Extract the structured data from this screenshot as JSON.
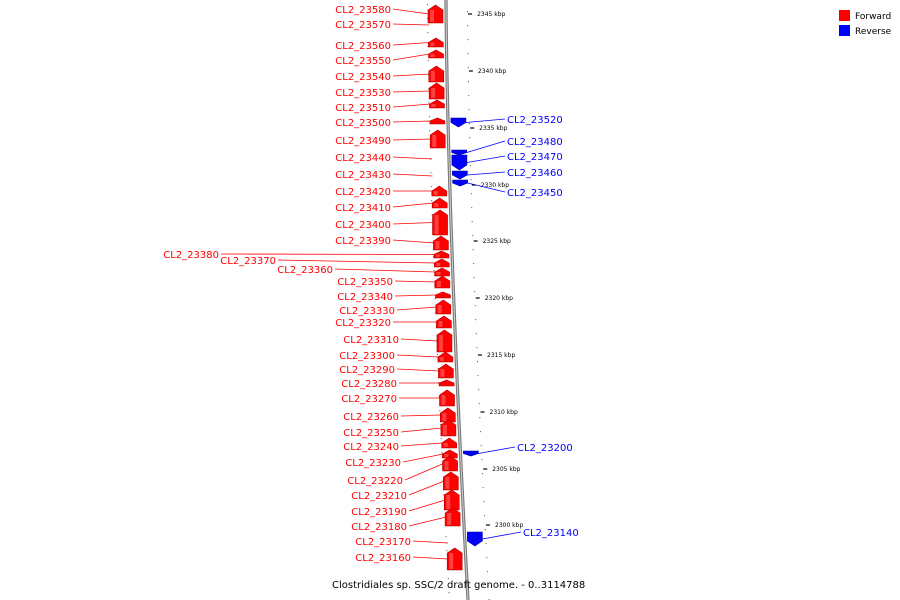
{
  "legend": {
    "forward_label": "Forward",
    "reverse_label": "Reverse"
  },
  "colors": {
    "forward": "#ff0000",
    "forward_dark": "#b30000",
    "reverse": "#0000ff",
    "reverse_dark": "#00009a",
    "axis": "#999999"
  },
  "caption": "Clostridiales sp. SSC/2 draft genome. - 0..3114788",
  "scale": {
    "unit": "kbp",
    "ticks": [
      2345,
      2340,
      2335,
      2330,
      2325,
      2320,
      2315,
      2310,
      2305,
      2300
    ]
  },
  "forward_genes": [
    "CL2_23580",
    "CL2_23570",
    "CL2_23560",
    "CL2_23550",
    "CL2_23540",
    "CL2_23530",
    "CL2_23510",
    "CL2_23500",
    "CL2_23490",
    "CL2_23440",
    "CL2_23430",
    "CL2_23420",
    "CL2_23410",
    "CL2_23400",
    "CL2_23390",
    "CL2_23380",
    "CL2_23370",
    "CL2_23360",
    "CL2_23350",
    "CL2_23340",
    "CL2_23330",
    "CL2_23320",
    "CL2_23310",
    "CL2_23300",
    "CL2_23290",
    "CL2_23280",
    "CL2_23270",
    "CL2_23260",
    "CL2_23250",
    "CL2_23240",
    "CL2_23230",
    "CL2_23220",
    "CL2_23210",
    "CL2_23190",
    "CL2_23180",
    "CL2_23170",
    "CL2_23160"
  ],
  "reverse_genes": [
    "CL2_23520",
    "CL2_23480",
    "CL2_23470",
    "CL2_23460",
    "CL2_23450",
    "CL2_23200",
    "CL2_23140"
  ]
}
